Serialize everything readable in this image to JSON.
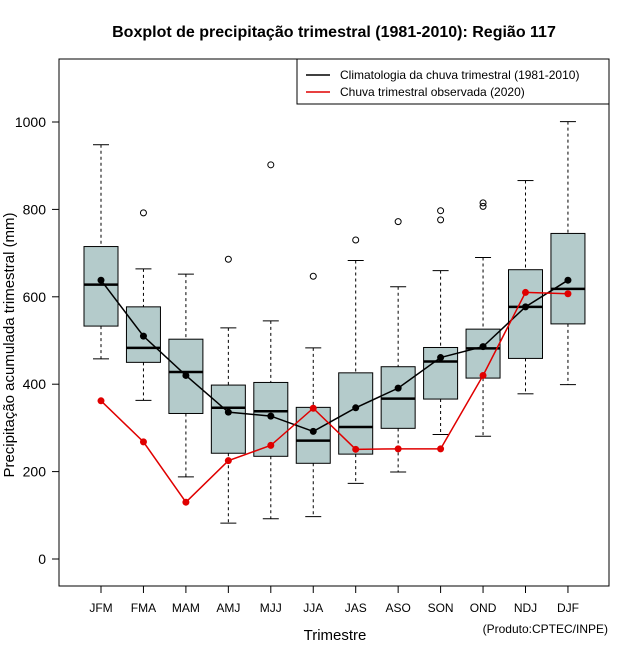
{
  "chart_data": {
    "type": "boxplot",
    "title": "Boxplot de precipitação trimestral (1981-2010): Região 117",
    "xlabel": "Trimestre",
    "ylabel": "Precipitação acumulada trimestral (mm)",
    "credit": "(Produto:CPTEC/INPE)",
    "ylim": [
      -60,
      1120
    ],
    "yticks": [
      0,
      200,
      400,
      600,
      800,
      1000
    ],
    "categories": [
      "JFM",
      "FMA",
      "MAM",
      "AMJ",
      "MJJ",
      "JJA",
      "JAS",
      "ASO",
      "SON",
      "OND",
      "NDJ",
      "DJF"
    ],
    "boxes": [
      {
        "whisker_low": 458,
        "q1": 533,
        "median": 628,
        "q3": 715,
        "whisker_high": 948,
        "outliers": []
      },
      {
        "whisker_low": 363,
        "q1": 450,
        "median": 483,
        "q3": 577,
        "whisker_high": 664,
        "outliers": [
          792
        ]
      },
      {
        "whisker_low": 188,
        "q1": 333,
        "median": 428,
        "q3": 503,
        "whisker_high": 652,
        "outliers": []
      },
      {
        "whisker_low": 82,
        "q1": 242,
        "median": 346,
        "q3": 398,
        "whisker_high": 529,
        "outliers": [
          686
        ]
      },
      {
        "whisker_low": 92,
        "q1": 235,
        "median": 338,
        "q3": 404,
        "whisker_high": 545,
        "outliers": [
          902
        ]
      },
      {
        "whisker_low": 97,
        "q1": 219,
        "median": 271,
        "q3": 347,
        "whisker_high": 483,
        "outliers": [
          647
        ]
      },
      {
        "whisker_low": 173,
        "q1": 240,
        "median": 302,
        "q3": 426,
        "whisker_high": 683,
        "outliers": [
          730
        ]
      },
      {
        "whisker_low": 199,
        "q1": 299,
        "median": 367,
        "q3": 440,
        "whisker_high": 623,
        "outliers": [
          772
        ]
      },
      {
        "whisker_low": 285,
        "q1": 366,
        "median": 452,
        "q3": 484,
        "whisker_high": 660,
        "outliers": [
          776,
          797
        ]
      },
      {
        "whisker_low": 281,
        "q1": 414,
        "median": 482,
        "q3": 526,
        "whisker_high": 690,
        "outliers": [
          807,
          815
        ]
      },
      {
        "whisker_low": 378,
        "q1": 459,
        "median": 577,
        "q3": 662,
        "whisker_high": 866,
        "outliers": []
      },
      {
        "whisker_low": 399,
        "q1": 538,
        "median": 618,
        "q3": 745,
        "whisker_high": 1001,
        "outliers": []
      }
    ],
    "series": [
      {
        "name": "Climatologia da chuva trimestral (1981-2010)",
        "color": "#000000",
        "values": [
          638,
          510,
          420,
          336,
          327,
          292,
          346,
          391,
          461,
          486,
          577,
          638
        ]
      },
      {
        "name": "Chuva trimestral observada (2020)",
        "color": "#e00000",
        "values": [
          362,
          268,
          130,
          225,
          260,
          345,
          251,
          252,
          252,
          420,
          610,
          607
        ]
      }
    ],
    "box_fill": "#b4cbcb",
    "legend_position": "top-right",
    "grid": false
  }
}
